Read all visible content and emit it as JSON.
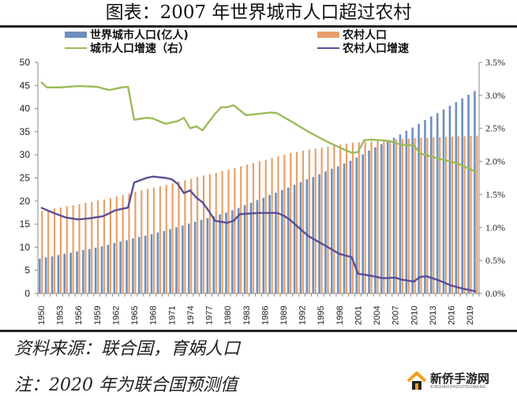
{
  "title": "图表：2007 年世界城市人口超过农村",
  "footnote_source": "资料来源：联合国，育娲人口",
  "footnote_note": "注：2020 年为联合国预测值",
  "watermark": {
    "name": "新侨手游网",
    "sub": "XINQIAOSHOUYOUWANG"
  },
  "chart_data": {
    "type": "bar+line",
    "legend": [
      "世界城市人口(亿人)",
      "农村人口",
      "城市人口增速（右）",
      "农村人口增速"
    ],
    "legend_placement": "top",
    "colors": {
      "urban": "#6f8fc0",
      "rural": "#e8a069",
      "urban_growth": "#9bbb59",
      "rural_growth": "#5a4f96"
    },
    "x_start": 1950,
    "x_end": 2020,
    "x_ticks": [
      "1950",
      "1953",
      "1956",
      "1959",
      "1962",
      "1965",
      "1968",
      "1971",
      "1974",
      "1977",
      "1980",
      "1983",
      "1986",
      "1989",
      "1992",
      "1995",
      "1998",
      "2001",
      "2004",
      "2007",
      "2010",
      "2013",
      "2016",
      "2019"
    ],
    "y_left": {
      "range": [
        0,
        50
      ],
      "ticks": [
        "0",
        "5",
        "10",
        "15",
        "20",
        "25",
        "30",
        "35",
        "40",
        "45",
        "50"
      ]
    },
    "y_right": {
      "range": [
        0,
        3.5
      ],
      "ticks": [
        "0.0%",
        "0.5%",
        "1.0%",
        "1.5%",
        "2.0%",
        "2.5%",
        "3.0%",
        "3.5%"
      ]
    },
    "series": [
      {
        "name": "世界城市人口(亿人)",
        "axis": "left",
        "kind": "bar",
        "values": [
          7.5,
          7.8,
          8.0,
          8.3,
          8.6,
          8.8,
          9.1,
          9.4,
          9.6,
          9.9,
          10.2,
          10.5,
          10.9,
          11.2,
          11.5,
          11.9,
          12.2,
          12.5,
          12.8,
          13.2,
          13.5,
          13.9,
          14.3,
          14.7,
          15.1,
          15.5,
          15.9,
          16.3,
          16.7,
          17.1,
          17.5,
          18.0,
          18.5,
          19.1,
          19.6,
          20.2,
          20.7,
          21.3,
          21.8,
          22.4,
          22.9,
          23.5,
          24.1,
          24.7,
          25.2,
          25.8,
          26.4,
          27.0,
          27.5,
          28.1,
          28.7,
          29.4,
          30.1,
          30.9,
          31.6,
          32.3,
          33.0,
          33.7,
          34.4,
          35.2,
          35.9,
          36.7,
          37.5,
          38.3,
          39.0,
          39.8,
          40.6,
          41.4,
          42.2,
          43.0,
          43.8
        ]
      },
      {
        "name": "农村人口",
        "axis": "left",
        "kind": "bar",
        "values": [
          17.9,
          18.1,
          18.4,
          18.6,
          18.9,
          19.1,
          19.3,
          19.6,
          19.8,
          20.1,
          20.3,
          20.6,
          21.0,
          21.3,
          21.6,
          22.0,
          22.3,
          22.6,
          22.9,
          23.2,
          23.5,
          23.8,
          24.2,
          24.5,
          24.8,
          25.2,
          25.5,
          25.8,
          26.1,
          26.5,
          26.8,
          27.1,
          27.5,
          27.9,
          28.2,
          28.6,
          28.9,
          29.3,
          29.7,
          30.0,
          30.4,
          30.6,
          30.9,
          31.1,
          31.3,
          31.5,
          31.7,
          32.0,
          32.2,
          32.4,
          32.6,
          32.7,
          32.8,
          32.9,
          33.0,
          33.1,
          33.2,
          33.3,
          33.4,
          33.5,
          33.6,
          33.7,
          33.7,
          33.8,
          33.8,
          33.9,
          33.9,
          34.0,
          34.0,
          34.1,
          34.1
        ]
      },
      {
        "name": "城市人口增速（右）",
        "axis": "right",
        "kind": "line",
        "unit": "%",
        "points": [
          [
            1950,
            3.2
          ],
          [
            1951,
            3.12
          ],
          [
            1953,
            3.12
          ],
          [
            1956,
            3.14
          ],
          [
            1959,
            3.13
          ],
          [
            1961,
            3.08
          ],
          [
            1963,
            3.12
          ],
          [
            1964,
            3.13
          ],
          [
            1965,
            2.63
          ],
          [
            1967,
            2.66
          ],
          [
            1968,
            2.65
          ],
          [
            1970,
            2.57
          ],
          [
            1972,
            2.61
          ],
          [
            1973,
            2.66
          ],
          [
            1974,
            2.5
          ],
          [
            1975,
            2.53
          ],
          [
            1976,
            2.47
          ],
          [
            1978,
            2.72
          ],
          [
            1979,
            2.82
          ],
          [
            1980,
            2.82
          ],
          [
            1981,
            2.85
          ],
          [
            1983,
            2.7
          ],
          [
            1985,
            2.72
          ],
          [
            1987,
            2.74
          ],
          [
            1988,
            2.73
          ],
          [
            1990,
            2.62
          ],
          [
            1993,
            2.45
          ],
          [
            1996,
            2.3
          ],
          [
            1999,
            2.17
          ],
          [
            2000,
            2.13
          ],
          [
            2001,
            2.14
          ],
          [
            2002,
            2.32
          ],
          [
            2003,
            2.33
          ],
          [
            2006,
            2.31
          ],
          [
            2008,
            2.25
          ],
          [
            2010,
            2.24
          ],
          [
            2011,
            2.12
          ],
          [
            2014,
            2.04
          ],
          [
            2017,
            1.97
          ],
          [
            2020,
            1.84
          ]
        ]
      },
      {
        "name": "农村人口增速",
        "axis": "left",
        "kind": "line",
        "unit": "%",
        "points": [
          [
            1950,
            1.3
          ],
          [
            1952,
            1.22
          ],
          [
            1954,
            1.15
          ],
          [
            1956,
            1.12
          ],
          [
            1958,
            1.14
          ],
          [
            1960,
            1.17
          ],
          [
            1962,
            1.26
          ],
          [
            1964,
            1.3
          ],
          [
            1965,
            1.68
          ],
          [
            1967,
            1.75
          ],
          [
            1968,
            1.77
          ],
          [
            1970,
            1.75
          ],
          [
            1971,
            1.73
          ],
          [
            1972,
            1.66
          ],
          [
            1973,
            1.52
          ],
          [
            1974,
            1.56
          ],
          [
            1975,
            1.45
          ],
          [
            1976,
            1.38
          ],
          [
            1977,
            1.25
          ],
          [
            1978,
            1.1
          ],
          [
            1980,
            1.07
          ],
          [
            1981,
            1.1
          ],
          [
            1982,
            1.2
          ],
          [
            1985,
            1.22
          ],
          [
            1988,
            1.22
          ],
          [
            1989,
            1.18
          ],
          [
            1990,
            1.12
          ],
          [
            1993,
            0.87
          ],
          [
            1996,
            0.71
          ],
          [
            1998,
            0.6
          ],
          [
            2000,
            0.55
          ],
          [
            2001,
            0.3
          ],
          [
            2003,
            0.27
          ],
          [
            2005,
            0.23
          ],
          [
            2007,
            0.24
          ],
          [
            2008,
            0.21
          ],
          [
            2010,
            0.18
          ],
          [
            2011,
            0.25
          ],
          [
            2012,
            0.26
          ],
          [
            2014,
            0.2
          ],
          [
            2016,
            0.12
          ],
          [
            2018,
            0.07
          ],
          [
            2020,
            0.03
          ]
        ]
      }
    ]
  }
}
